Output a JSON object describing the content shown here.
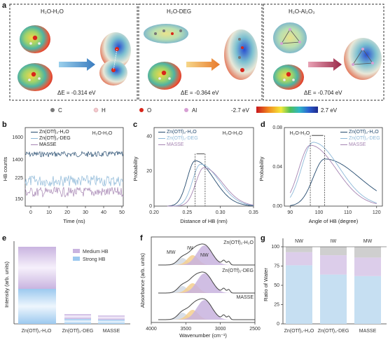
{
  "panel_a": {
    "label": "a",
    "subpanels": [
      {
        "title": "H₂O-H₂O",
        "energy": "ΔE = -0.314 eV"
      },
      {
        "title": "H₂O-DEG",
        "energy": "ΔE = -0.364 eV"
      },
      {
        "title": "H₂O-Al₂O₃",
        "energy": "ΔE = -0.704 eV"
      }
    ],
    "atom_legend": [
      "C",
      "H",
      "O",
      "Al"
    ],
    "colorbar_min": "-2.7 eV",
    "colorbar_max": "2.7 eV",
    "colors": {
      "C": "#7a7a7a",
      "H": "#f4c9cf",
      "O": "#d8261b",
      "Al": "#d7a0d4"
    }
  },
  "panel_b": {
    "label": "b",
    "annotation": "H₂O-H₂O",
    "xlabel": "Time (ns)",
    "ylabel": "HB counts",
    "xticks": [
      "0",
      "10",
      "20",
      "30",
      "40",
      "50"
    ],
    "yticks": [
      "1600",
      "1400",
      "225",
      "150"
    ],
    "legend": [
      {
        "name": "Zn(OTf)₂-H₂O",
        "color": "#244a6e"
      },
      {
        "name": "Zn(OTf)₂-DEG",
        "color": "#8db8d8"
      },
      {
        "name": "MASSE",
        "color": "#a584b2"
      }
    ]
  },
  "panel_c": {
    "label": "c",
    "annotation": "H₂O-H₂O",
    "xlabel": "Distance of HB (nm)",
    "ylabel": "Probability",
    "xticks": [
      "0.20",
      "0.25",
      "0.30",
      "0.35"
    ],
    "yticks": [
      "0",
      "20",
      "40"
    ],
    "legend": [
      "Zn(OTf)₂-H₂O",
      "Zn(OTf)₂-DEG",
      "MASSE"
    ]
  },
  "panel_d": {
    "label": "d",
    "annotation": "H₂O-H₂O",
    "xlabel": "Angle of HB (degree)",
    "ylabel": "Probability",
    "xticks": [
      "90",
      "100",
      "110",
      "120"
    ],
    "yticks": [
      "0.00",
      "0.04",
      "0.08"
    ],
    "legend": [
      "Zn(OTf)₂-H₂O",
      "Zn(OTf)₂-DEG",
      "MASSE"
    ]
  },
  "panel_e": {
    "label": "e",
    "ylabel": "Intensity (arb. units)",
    "legend": [
      "Medium HB",
      "Strong HB"
    ],
    "categories": [
      "Zn(OTf)₂-H₂O",
      "Zn(OTf)₂-DEG",
      "MASSE"
    ]
  },
  "panel_f": {
    "label": "f",
    "xlabel": "Wavenumber (cm⁻¹)",
    "ylabel": "Absorbance (arb. units)",
    "xticks": [
      "4000",
      "3500",
      "3000",
      "2500"
    ],
    "peak_labels": [
      "MW",
      "IW",
      "NW"
    ],
    "samples": [
      "Zn(OTf)₂-H₂O",
      "Zn(OTf)₂-DEG",
      "MASSE"
    ]
  },
  "panel_g": {
    "label": "g",
    "ylabel": "Ratio of Water",
    "yticks": [
      "0",
      "25",
      "50",
      "75",
      "100"
    ],
    "top_labels": [
      "NW",
      "IW",
      "MW"
    ],
    "categories": [
      "Zn(OTf)₂-H₂O",
      "Zn(OTf)₂-DEG",
      "MASSE"
    ]
  },
  "chart_data": [
    {
      "type": "line",
      "panel": "b",
      "xlabel": "Time (ns)",
      "ylabel": "HB counts",
      "xlim": [
        0,
        50
      ],
      "series": [
        {
          "name": "Zn(OTf)₂-H₂O",
          "mean": 1360
        },
        {
          "name": "Zn(OTf)₂-DEG",
          "mean": 215
        },
        {
          "name": "MASSE",
          "mean": 170
        }
      ]
    },
    {
      "type": "line",
      "panel": "c",
      "xlabel": "Distance of HB (nm)",
      "ylabel": "Probability",
      "xlim": [
        0.2,
        0.35
      ],
      "ylim": [
        0,
        45
      ],
      "series": [
        {
          "name": "Zn(OTf)₂-H₂O",
          "peak_x": 0.262,
          "peak_y": 26
        },
        {
          "name": "Zn(OTf)₂-DEG",
          "peak_x": 0.27,
          "peak_y": 24
        },
        {
          "name": "MASSE",
          "peak_x": 0.275,
          "peak_y": 22
        }
      ]
    },
    {
      "type": "line",
      "panel": "d",
      "xlabel": "Angle of HB (degree)",
      "ylabel": "Probability",
      "xlim": [
        88,
        122
      ],
      "ylim": [
        0,
        0.08
      ],
      "series": [
        {
          "name": "Zn(OTf)₂-H₂O",
          "peak_x": 102,
          "peak_y": 0.048
        },
        {
          "name": "Zn(OTf)₂-DEG",
          "peak_x": 98,
          "peak_y": 0.065
        },
        {
          "name": "MASSE",
          "peak_x": 97,
          "peak_y": 0.062
        }
      ]
    },
    {
      "type": "bar",
      "panel": "g",
      "categories": [
        "Zn(OTf)₂-H₂O",
        "Zn(OTf)₂-DEG",
        "MASSE"
      ],
      "ylabel": "Ratio of Water",
      "ylim": [
        0,
        100
      ],
      "series": [
        {
          "name": "NW",
          "values": [
            76,
            64,
            62
          ]
        },
        {
          "name": "IW",
          "values": [
            17,
            25,
            24
          ]
        },
        {
          "name": "MW",
          "values": [
            7,
            11,
            14
          ]
        }
      ]
    }
  ]
}
